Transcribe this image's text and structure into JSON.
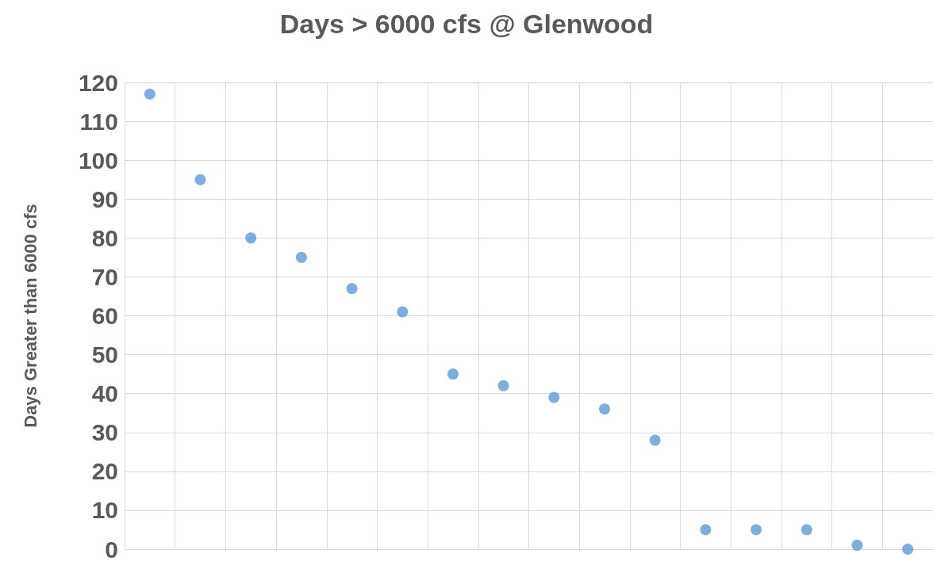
{
  "chart_data": {
    "type": "scatter",
    "title": "Days > 6000 cfs @ Glenwood",
    "ylabel": "Days Greater than 6000 cfs",
    "categories": [
      null,
      null,
      null,
      null,
      null,
      null,
      null,
      null,
      null,
      null,
      null,
      null,
      null,
      null,
      null,
      null
    ],
    "series": [
      {
        "color": "#5b9bd5",
        "values": [
          117,
          95,
          80,
          75,
          67,
          61,
          45,
          42,
          39,
          36,
          28,
          5,
          5,
          5,
          1,
          0
        ]
      }
    ],
    "ylim": [
      0,
      120
    ],
    "yticks": [
      0,
      10,
      20,
      30,
      40,
      50,
      60,
      70,
      80,
      90,
      100,
      110,
      120
    ],
    "grid": true,
    "marker": "circle"
  }
}
